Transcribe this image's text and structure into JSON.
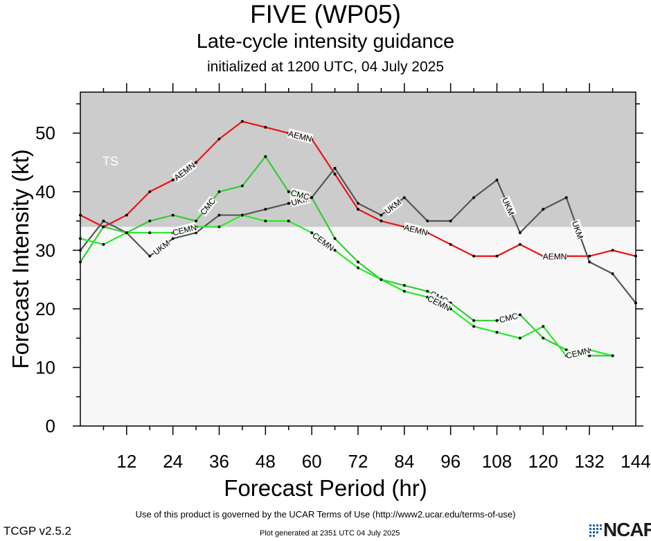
{
  "title": "FIVE (WP05)",
  "subtitle": "Late-cycle intensity guidance",
  "initialized": "initialized at 1200 UTC, 04 July 2025",
  "footer": {
    "terms": "Use of this product is governed by the UCAR Terms of Use (http://www2.ucar.edu/terms-of-use)",
    "generated": "Plot generated at 2351 UTC   04 July 2025",
    "version": "TCGP v2.5.2",
    "logo_text": "NCAR"
  },
  "chart_data": {
    "type": "line",
    "xlabel": "Forecast Period (hr)",
    "ylabel": "Forecast Intensity (kt)",
    "xlim": [
      0,
      144
    ],
    "ylim": [
      0,
      57
    ],
    "xticks": [
      12,
      24,
      36,
      48,
      60,
      72,
      84,
      96,
      108,
      120,
      132,
      144
    ],
    "yticks": [
      0,
      10,
      20,
      30,
      40,
      50
    ],
    "bands": [
      {
        "label": "TS",
        "from": 34,
        "to": 57,
        "color": "#cccccc"
      },
      {
        "label": "",
        "from": 0,
        "to": 34,
        "color": "#f7f7f7"
      }
    ],
    "series": [
      {
        "name": "AEMN",
        "color": "#ee1111",
        "x": [
          0,
          6,
          12,
          18,
          24,
          30,
          36,
          42,
          48,
          54,
          60,
          66,
          72,
          78,
          84,
          90,
          96,
          102,
          108,
          114,
          120,
          126,
          132,
          138,
          144
        ],
        "y": [
          36,
          34,
          36,
          40,
          42,
          45,
          49,
          52,
          51,
          50,
          49,
          43,
          37,
          35,
          34,
          33,
          31,
          29,
          29,
          31,
          29,
          29,
          29,
          30,
          29
        ],
        "labels_at": [
          24,
          54,
          84,
          120
        ]
      },
      {
        "name": "UKM",
        "color": "#555555",
        "x": [
          0,
          6,
          12,
          18,
          24,
          30,
          36,
          42,
          48,
          54,
          60,
          66,
          72,
          78,
          84,
          90,
          96,
          102,
          108,
          114,
          120,
          126,
          132,
          138,
          144
        ],
        "y": [
          30,
          35,
          33,
          29,
          32,
          33,
          36,
          36,
          37,
          38,
          39,
          44,
          38,
          36,
          39,
          35,
          35,
          39,
          42,
          33,
          37,
          39,
          28,
          26,
          21
        ],
        "labels_at": [
          18,
          54,
          78,
          108,
          126
        ]
      },
      {
        "name": "CMC",
        "color": "#33cc33",
        "x": [
          0,
          6,
          12,
          18,
          24,
          30,
          36,
          42,
          48,
          54,
          60,
          66,
          72,
          78,
          84,
          90,
          96,
          102,
          108,
          114,
          120,
          126,
          132,
          138
        ],
        "y": [
          28,
          34,
          33,
          35,
          36,
          35,
          40,
          41,
          46,
          40,
          39,
          32,
          28,
          25,
          24,
          23,
          21,
          18,
          18,
          19,
          15,
          13,
          12,
          12
        ],
        "labels_at": [
          30,
          54,
          90,
          108
        ]
      },
      {
        "name": "CEMN",
        "color": "#22ee22",
        "x": [
          0,
          6,
          12,
          18,
          24,
          30,
          36,
          42,
          48,
          54,
          60,
          66,
          72,
          78,
          84,
          90,
          96,
          102,
          108,
          114,
          120,
          126,
          132,
          138
        ],
        "y": [
          32,
          31,
          33,
          33,
          33,
          34,
          34,
          36,
          35,
          35,
          33,
          30,
          27,
          25,
          23,
          22,
          20,
          17,
          16,
          15,
          17,
          12,
          13,
          12
        ],
        "labels_at": [
          24,
          60,
          90,
          126
        ]
      }
    ]
  }
}
